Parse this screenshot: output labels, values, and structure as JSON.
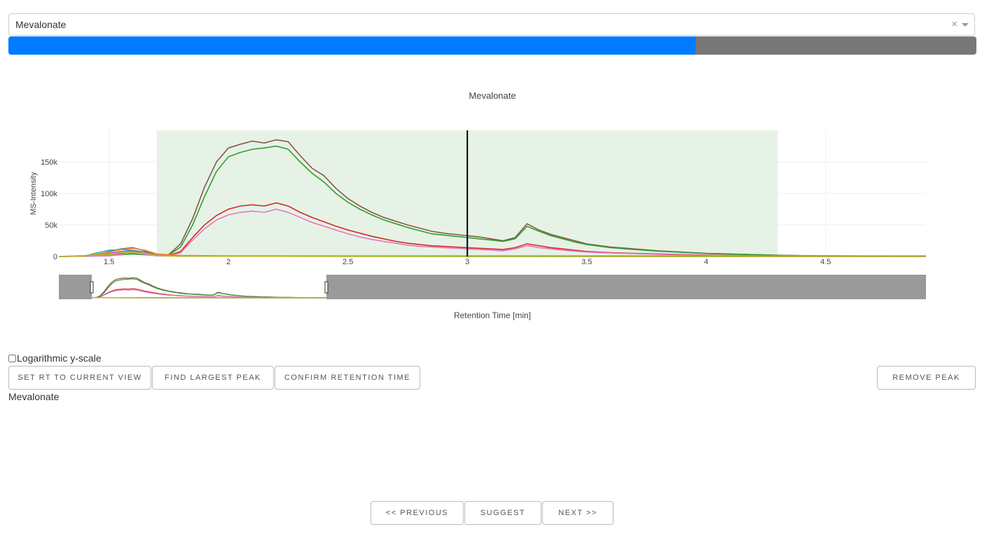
{
  "selector": {
    "value": "Mevalonate",
    "clear_symbol": "×"
  },
  "progress": {
    "fraction": 0.71,
    "fill_color": "#007bff",
    "track_color": "#777777"
  },
  "chart_data": {
    "type": "line",
    "title": "Mevalonate",
    "xlabel": "Retention Time [min]",
    "ylabel": "MS-Intensity",
    "x_ticks": [
      "1.5",
      "2",
      "2.5",
      "3",
      "3.5",
      "4",
      "4.5"
    ],
    "y_ticks": [
      "0",
      "50k",
      "100k",
      "150k"
    ],
    "xlim": [
      1.29,
      4.92
    ],
    "ylim": [
      0,
      200000
    ],
    "highlight_range": [
      1.7,
      4.3
    ],
    "highlight_color": "#e6f2e6",
    "vertical_marker": 3.0,
    "rangeslider_window": [
      1.29,
      2.27
    ],
    "grid": true,
    "series": [
      {
        "color": "#8c564b",
        "points": [
          [
            1.29,
            0
          ],
          [
            1.5,
            2000
          ],
          [
            1.6,
            5000
          ],
          [
            1.7,
            1500
          ],
          [
            1.75,
            3000
          ],
          [
            1.8,
            20000
          ],
          [
            1.85,
            60000
          ],
          [
            1.9,
            110000
          ],
          [
            1.95,
            150000
          ],
          [
            2.0,
            172000
          ],
          [
            2.05,
            178000
          ],
          [
            2.1,
            183000
          ],
          [
            2.15,
            180000
          ],
          [
            2.2,
            185000
          ],
          [
            2.25,
            182000
          ],
          [
            2.3,
            160000
          ],
          [
            2.35,
            140000
          ],
          [
            2.4,
            128000
          ],
          [
            2.45,
            108000
          ],
          [
            2.5,
            92000
          ],
          [
            2.55,
            80000
          ],
          [
            2.6,
            70000
          ],
          [
            2.65,
            62000
          ],
          [
            2.7,
            56000
          ],
          [
            2.75,
            50000
          ],
          [
            2.8,
            45000
          ],
          [
            2.85,
            40000
          ],
          [
            2.9,
            37000
          ],
          [
            2.95,
            35000
          ],
          [
            3.0,
            33000
          ],
          [
            3.05,
            31000
          ],
          [
            3.1,
            28000
          ],
          [
            3.15,
            25000
          ],
          [
            3.2,
            30000
          ],
          [
            3.25,
            52000
          ],
          [
            3.3,
            42000
          ],
          [
            3.35,
            35000
          ],
          [
            3.4,
            30000
          ],
          [
            3.45,
            25000
          ],
          [
            3.5,
            20000
          ],
          [
            3.6,
            15000
          ],
          [
            3.7,
            12000
          ],
          [
            3.8,
            9000
          ],
          [
            3.9,
            7000
          ],
          [
            4.0,
            5000
          ],
          [
            4.1,
            4000
          ],
          [
            4.2,
            3000
          ],
          [
            4.3,
            2000
          ],
          [
            4.5,
            1000
          ],
          [
            4.92,
            500
          ]
        ]
      },
      {
        "color": "#2ca02c",
        "points": [
          [
            1.29,
            0
          ],
          [
            1.5,
            1500
          ],
          [
            1.6,
            4000
          ],
          [
            1.7,
            1500
          ],
          [
            1.75,
            2500
          ],
          [
            1.8,
            15000
          ],
          [
            1.85,
            50000
          ],
          [
            1.9,
            95000
          ],
          [
            1.95,
            135000
          ],
          [
            2.0,
            158000
          ],
          [
            2.05,
            165000
          ],
          [
            2.1,
            170000
          ],
          [
            2.15,
            172000
          ],
          [
            2.2,
            175000
          ],
          [
            2.25,
            170000
          ],
          [
            2.3,
            150000
          ],
          [
            2.35,
            132000
          ],
          [
            2.4,
            118000
          ],
          [
            2.45,
            100000
          ],
          [
            2.5,
            86000
          ],
          [
            2.55,
            75000
          ],
          [
            2.6,
            66000
          ],
          [
            2.65,
            58000
          ],
          [
            2.7,
            52000
          ],
          [
            2.75,
            46000
          ],
          [
            2.8,
            41000
          ],
          [
            2.85,
            36000
          ],
          [
            2.9,
            34000
          ],
          [
            2.95,
            32000
          ],
          [
            3.0,
            30000
          ],
          [
            3.05,
            28000
          ],
          [
            3.1,
            26000
          ],
          [
            3.15,
            24000
          ],
          [
            3.2,
            28000
          ],
          [
            3.25,
            48000
          ],
          [
            3.3,
            40000
          ],
          [
            3.35,
            33000
          ],
          [
            3.4,
            28000
          ],
          [
            3.45,
            23000
          ],
          [
            3.5,
            19000
          ],
          [
            3.6,
            14000
          ],
          [
            3.7,
            11000
          ],
          [
            3.8,
            8500
          ],
          [
            3.9,
            6500
          ],
          [
            4.0,
            4800
          ],
          [
            4.1,
            3800
          ],
          [
            4.2,
            2800
          ],
          [
            4.3,
            1800
          ],
          [
            4.5,
            900
          ],
          [
            4.92,
            400
          ]
        ]
      },
      {
        "color": "#d62728",
        "points": [
          [
            1.29,
            0
          ],
          [
            1.5,
            2000
          ],
          [
            1.6,
            8000
          ],
          [
            1.7,
            1500
          ],
          [
            1.75,
            1500
          ],
          [
            1.8,
            8000
          ],
          [
            1.85,
            30000
          ],
          [
            1.9,
            50000
          ],
          [
            1.95,
            65000
          ],
          [
            2.0,
            75000
          ],
          [
            2.05,
            80000
          ],
          [
            2.1,
            82000
          ],
          [
            2.15,
            80000
          ],
          [
            2.2,
            85000
          ],
          [
            2.25,
            80000
          ],
          [
            2.3,
            70000
          ],
          [
            2.35,
            62000
          ],
          [
            2.4,
            55000
          ],
          [
            2.45,
            48000
          ],
          [
            2.5,
            42000
          ],
          [
            2.55,
            37000
          ],
          [
            2.6,
            32000
          ],
          [
            2.65,
            28000
          ],
          [
            2.7,
            24000
          ],
          [
            2.75,
            21000
          ],
          [
            2.8,
            19000
          ],
          [
            2.85,
            17000
          ],
          [
            2.9,
            16000
          ],
          [
            2.95,
            15000
          ],
          [
            3.0,
            14000
          ],
          [
            3.05,
            13000
          ],
          [
            3.1,
            12000
          ],
          [
            3.15,
            11000
          ],
          [
            3.2,
            14000
          ],
          [
            3.25,
            20000
          ],
          [
            3.3,
            17000
          ],
          [
            3.35,
            14000
          ],
          [
            3.4,
            12000
          ],
          [
            3.45,
            10000
          ],
          [
            3.5,
            8000
          ],
          [
            3.6,
            6000
          ],
          [
            3.7,
            5000
          ],
          [
            3.8,
            4000
          ],
          [
            3.9,
            3000
          ],
          [
            4.0,
            2200
          ],
          [
            4.1,
            1600
          ],
          [
            4.2,
            1200
          ],
          [
            4.3,
            800
          ],
          [
            4.5,
            400
          ],
          [
            4.92,
            200
          ]
        ]
      },
      {
        "color": "#e377c2",
        "points": [
          [
            1.29,
            0
          ],
          [
            1.5,
            1000
          ],
          [
            1.6,
            6000
          ],
          [
            1.7,
            1000
          ],
          [
            1.75,
            1000
          ],
          [
            1.8,
            6000
          ],
          [
            1.85,
            26000
          ],
          [
            1.9,
            44000
          ],
          [
            1.95,
            58000
          ],
          [
            2.0,
            66000
          ],
          [
            2.05,
            70000
          ],
          [
            2.1,
            72000
          ],
          [
            2.15,
            70000
          ],
          [
            2.2,
            75000
          ],
          [
            2.25,
            70000
          ],
          [
            2.3,
            62000
          ],
          [
            2.35,
            54000
          ],
          [
            2.4,
            48000
          ],
          [
            2.45,
            42000
          ],
          [
            2.5,
            36000
          ],
          [
            2.55,
            31000
          ],
          [
            2.6,
            27000
          ],
          [
            2.65,
            24000
          ],
          [
            2.7,
            21000
          ],
          [
            2.75,
            18000
          ],
          [
            2.8,
            16000
          ],
          [
            2.85,
            15000
          ],
          [
            2.9,
            14000
          ],
          [
            2.95,
            13000
          ],
          [
            3.0,
            12000
          ],
          [
            3.05,
            11000
          ],
          [
            3.1,
            10000
          ],
          [
            3.15,
            9000
          ],
          [
            3.2,
            12000
          ],
          [
            3.25,
            17000
          ],
          [
            3.3,
            14000
          ],
          [
            3.35,
            12000
          ],
          [
            3.4,
            10000
          ],
          [
            3.45,
            8500
          ],
          [
            3.5,
            7000
          ],
          [
            3.6,
            5500
          ],
          [
            3.7,
            4500
          ],
          [
            3.8,
            3500
          ],
          [
            3.9,
            2500
          ],
          [
            4.0,
            1800
          ],
          [
            4.1,
            1300
          ],
          [
            4.2,
            900
          ],
          [
            4.3,
            600
          ],
          [
            4.5,
            300
          ],
          [
            4.92,
            100
          ]
        ]
      },
      {
        "color": "#1f77b4",
        "points": [
          [
            1.29,
            0
          ],
          [
            1.4,
            500
          ],
          [
            1.45,
            3000
          ],
          [
            1.5,
            8000
          ],
          [
            1.55,
            12000
          ],
          [
            1.6,
            14000
          ],
          [
            1.65,
            9000
          ],
          [
            1.7,
            3000
          ],
          [
            1.8,
            800
          ],
          [
            2.0,
            500
          ],
          [
            2.5,
            300
          ],
          [
            3.0,
            200
          ],
          [
            4.0,
            100
          ],
          [
            4.92,
            0
          ]
        ]
      },
      {
        "color": "#17becf",
        "points": [
          [
            1.29,
            0
          ],
          [
            1.4,
            1000
          ],
          [
            1.45,
            6000
          ],
          [
            1.5,
            10000
          ],
          [
            1.55,
            11000
          ],
          [
            1.6,
            10000
          ],
          [
            1.65,
            7000
          ],
          [
            1.7,
            2500
          ],
          [
            1.8,
            700
          ],
          [
            2.0,
            400
          ],
          [
            2.5,
            250
          ],
          [
            3.0,
            150
          ],
          [
            4.0,
            80
          ],
          [
            4.92,
            0
          ]
        ]
      },
      {
        "color": "#ff7f0e",
        "points": [
          [
            1.29,
            0
          ],
          [
            1.4,
            500
          ],
          [
            1.45,
            4000
          ],
          [
            1.5,
            7000
          ],
          [
            1.55,
            11000
          ],
          [
            1.6,
            13000
          ],
          [
            1.65,
            10000
          ],
          [
            1.7,
            4000
          ],
          [
            1.8,
            1500
          ],
          [
            2.0,
            1000
          ],
          [
            2.5,
            1000
          ],
          [
            3.0,
            1000
          ],
          [
            3.5,
            1000
          ],
          [
            4.0,
            1000
          ],
          [
            4.5,
            1000
          ],
          [
            4.92,
            1000
          ]
        ]
      },
      {
        "color": "#9467bd",
        "points": [
          [
            1.29,
            0
          ],
          [
            1.45,
            2000
          ],
          [
            1.5,
            5000
          ],
          [
            1.55,
            8000
          ],
          [
            1.6,
            9000
          ],
          [
            1.65,
            7000
          ],
          [
            1.7,
            2000
          ],
          [
            1.8,
            500
          ],
          [
            2.5,
            200
          ],
          [
            4.92,
            0
          ]
        ]
      },
      {
        "color": "#bcbd22",
        "points": [
          [
            1.29,
            0
          ],
          [
            1.5,
            3000
          ],
          [
            1.55,
            6000
          ],
          [
            1.6,
            7000
          ],
          [
            1.65,
            5000
          ],
          [
            1.7,
            1500
          ],
          [
            1.8,
            400
          ],
          [
            2.5,
            200
          ],
          [
            4.92,
            0
          ]
        ]
      }
    ]
  },
  "controls": {
    "log_label": "Logarithmic y-scale",
    "set_rt": "SET RT TO CURRENT VIEW",
    "find_peak": "FIND LARGEST PEAK",
    "confirm_rt": "CONFIRM RETENTION TIME",
    "remove_peak": "REMOVE PEAK"
  },
  "metabolite_label": "Mevalonate",
  "nav": {
    "previous": "<< PREVIOUS",
    "suggest": "SUGGEST",
    "next": "NEXT >>"
  }
}
